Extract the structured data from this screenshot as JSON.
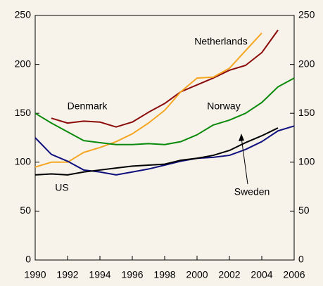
{
  "chart_data": {
    "type": "line",
    "x": [
      1990,
      1991,
      1992,
      1993,
      1994,
      1995,
      1996,
      1997,
      1998,
      1999,
      2000,
      2001,
      2002,
      2003,
      2004,
      2005,
      2006
    ],
    "xlim": [
      1990,
      2006
    ],
    "xticks": [
      1990,
      1992,
      1994,
      1996,
      1998,
      2000,
      2002,
      2004,
      2006
    ],
    "ylim": [
      0,
      250
    ],
    "yticks": [
      0,
      50,
      100,
      150,
      200,
      250
    ],
    "y2lim": [
      0,
      250
    ],
    "y2ticks": [
      0,
      50,
      100,
      150,
      200,
      250
    ],
    "series": [
      {
        "name": "Denmark",
        "color": "#8b0a0a",
        "values": [
          null,
          145,
          140,
          142,
          141,
          136,
          141,
          151,
          160,
          172,
          179,
          186,
          194,
          199,
          212,
          235,
          null
        ]
      },
      {
        "name": "Netherlands",
        "color": "#f5a623",
        "values": [
          95,
          100,
          100,
          110,
          115,
          121,
          129,
          140,
          153,
          172,
          186,
          187,
          196,
          214,
          232,
          null,
          null
        ]
      },
      {
        "name": "Norway",
        "color": "#0a8a0a",
        "values": [
          150,
          140,
          131,
          122,
          120,
          118,
          118,
          119,
          118,
          121,
          128,
          138,
          143,
          150,
          161,
          177,
          186
        ]
      },
      {
        "name": "US",
        "color": "#10107f",
        "values": [
          125,
          108,
          101,
          92,
          90,
          87,
          90,
          93,
          97,
          101,
          104,
          105,
          107,
          113,
          121,
          132,
          137
        ]
      },
      {
        "name": "Sweden",
        "color": "#000000",
        "values": [
          87,
          88,
          87,
          90,
          92,
          94,
          96,
          97,
          98,
          102,
          104,
          107,
          112,
          120,
          127,
          135,
          null
        ]
      }
    ]
  }
}
